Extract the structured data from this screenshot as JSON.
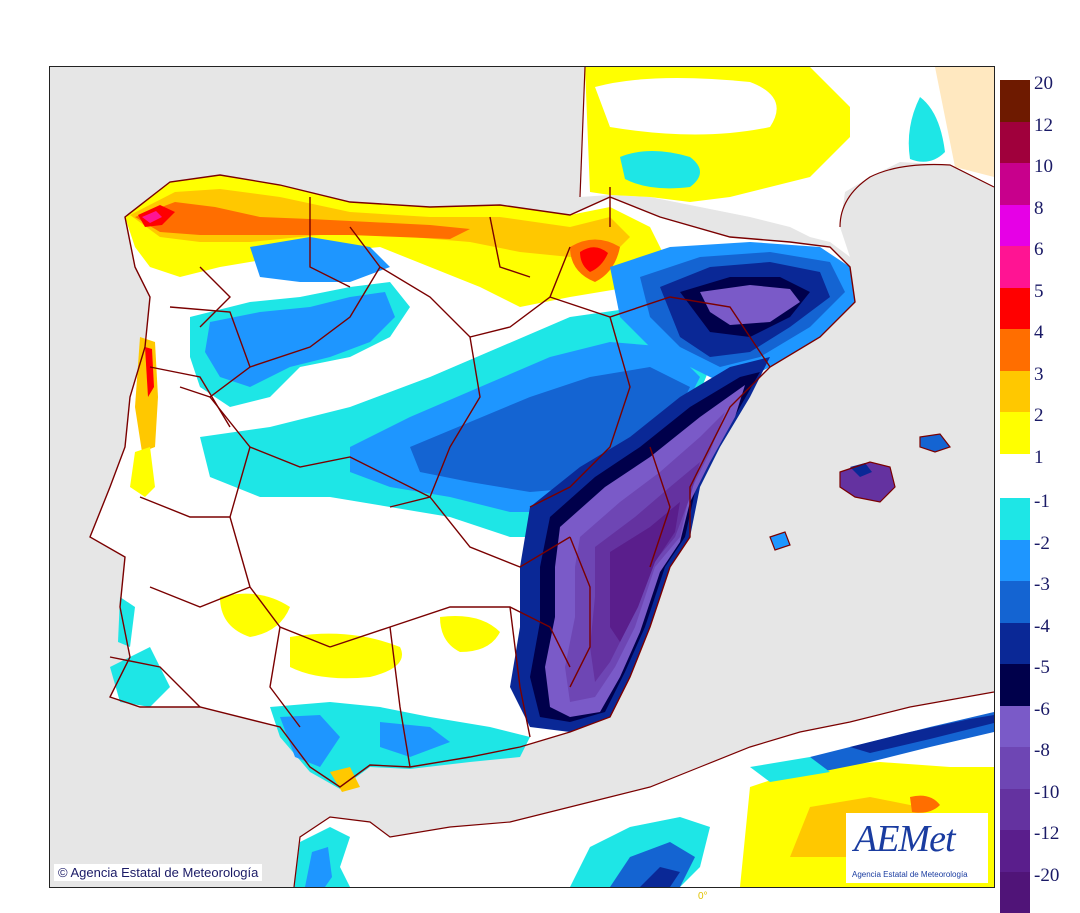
{
  "legend": {
    "levels": [
      {
        "label": "20",
        "color": "#6e1a00"
      },
      {
        "label": "12",
        "color": "#a0003c"
      },
      {
        "label": "10",
        "color": "#c8008c"
      },
      {
        "label": "8",
        "color": "#e600e6"
      },
      {
        "label": "6",
        "color": "#ff1493"
      },
      {
        "label": "5",
        "color": "#ff0000"
      },
      {
        "label": "4",
        "color": "#ff6e00"
      },
      {
        "label": "3",
        "color": "#ffc800"
      },
      {
        "label": "2",
        "color": "#ffff00"
      },
      {
        "label": "1",
        "color": "#ffffff"
      },
      {
        "label": "-1",
        "color": "#1ee6e6"
      },
      {
        "label": "-2",
        "color": "#1e96ff"
      },
      {
        "label": "-3",
        "color": "#1464d2"
      },
      {
        "label": "-4",
        "color": "#0a2896"
      },
      {
        "label": "-5",
        "color": "#00004b"
      },
      {
        "label": "-6",
        "color": "#7a5ac8"
      },
      {
        "label": "-8",
        "color": "#6e46b4"
      },
      {
        "label": "-10",
        "color": "#6432a0"
      },
      {
        "label": "-12",
        "color": "#5a1e8c"
      },
      {
        "label": "-20",
        "color": "#501478"
      }
    ]
  },
  "copyright": "© Agencia Estatal de Meteorología",
  "logo": {
    "word": "AEMet",
    "subtitle": "Agencia Estatal de Meteorología"
  },
  "meridian_label": "0°",
  "colors": {
    "sea": "#e6e6e6",
    "border": "#7a0000",
    "neutral": "#ffffff"
  }
}
